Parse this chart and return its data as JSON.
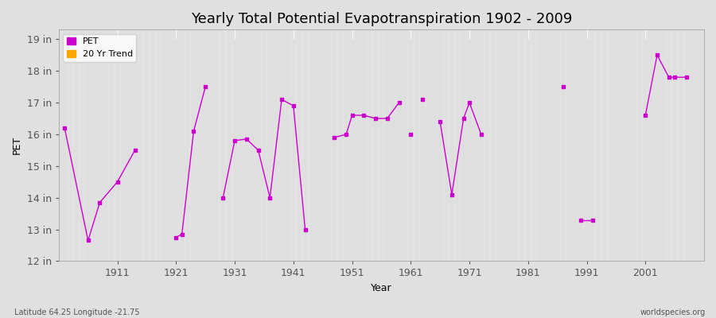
{
  "title": "Yearly Total Potential Evapotranspiration 1902 - 2009",
  "xlabel": "Year",
  "ylabel": "PET",
  "xlim": [
    1901,
    2011
  ],
  "ylim": [
    12,
    19.3
  ],
  "yticks": [
    12,
    13,
    14,
    15,
    16,
    17,
    18,
    19
  ],
  "ytick_labels": [
    "12 in",
    "13 in",
    "14 in",
    "15 in",
    "16 in",
    "17 in",
    "18 in",
    "19 in"
  ],
  "xticks": [
    1911,
    1921,
    1931,
    1941,
    1951,
    1961,
    1971,
    1981,
    1991,
    2001
  ],
  "line_color": "#CC00CC",
  "marker_color": "#CC00CC",
  "background_color": "#E0E0E0",
  "plot_bg_color": "#E0E0E0",
  "grid_color": "#FFFFFF",
  "legend_labels": [
    "PET",
    "20 Yr Trend"
  ],
  "legend_colors": [
    "#CC00CC",
    "#FFA500"
  ],
  "title_fontsize": 13,
  "axis_fontsize": 9,
  "footer_left": "Latitude 64.25 Longitude -21.75",
  "footer_right": "worldspecies.org",
  "segments": [
    {
      "years": [
        1902,
        1906,
        1908,
        1911,
        1914
      ],
      "values": [
        16.2,
        12.65,
        13.85,
        14.5,
        15.5
      ]
    },
    {
      "years": [
        1921,
        1922,
        1924,
        1926
      ],
      "values": [
        12.75,
        12.85,
        16.1,
        17.5
      ]
    },
    {
      "years": [
        1929,
        1931,
        1933,
        1935,
        1937,
        1939,
        1941,
        1943
      ],
      "values": [
        14.0,
        15.8,
        15.85,
        15.5,
        14.0,
        17.1,
        16.9,
        13.0
      ]
    },
    {
      "years": [
        1948,
        1950,
        1951,
        1953,
        1955,
        1957,
        1959
      ],
      "values": [
        15.9,
        16.0,
        16.6,
        16.6,
        16.5,
        16.5,
        17.0
      ]
    },
    {
      "years": [
        1961
      ],
      "values": [
        16.0
      ]
    },
    {
      "years": [
        1963
      ],
      "values": [
        17.1
      ]
    },
    {
      "years": [
        1966,
        1968,
        1970,
        1971,
        1973
      ],
      "values": [
        16.4,
        14.1,
        16.5,
        17.0,
        16.0
      ]
    },
    {
      "years": [
        1987
      ],
      "values": [
        17.5
      ]
    },
    {
      "years": [
        1990,
        1992
      ],
      "values": [
        13.3,
        13.3
      ]
    },
    {
      "years": [
        2001,
        2003,
        2005,
        2006,
        2008
      ],
      "values": [
        16.6,
        18.5,
        17.8,
        17.8,
        17.8
      ]
    }
  ]
}
